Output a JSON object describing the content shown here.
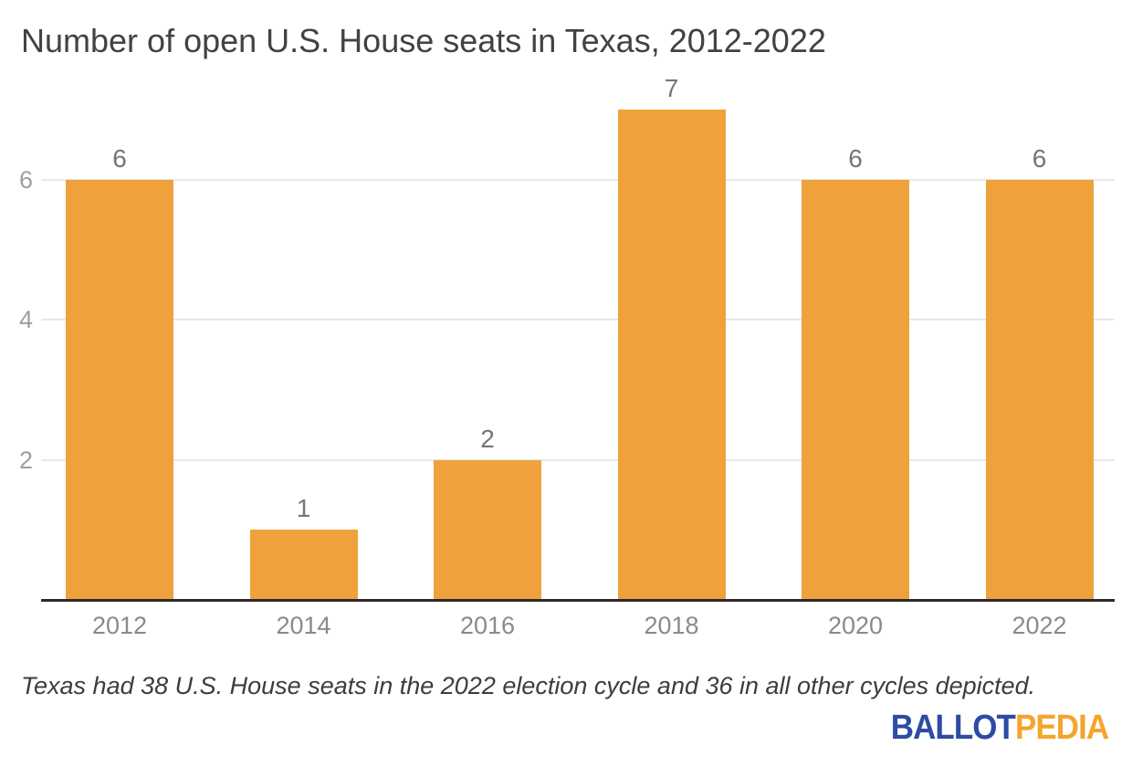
{
  "title": "Number of open U.S. House seats in Texas, 2012-2022",
  "footnote": "Texas had 38 U.S. House seats in the 2022 election cycle and 36 in all other cycles depicted.",
  "logo": {
    "part1": "BALLOT",
    "part2": "PEDIA",
    "part1_color": "#2d4ba5",
    "part2_color": "#f5a42c"
  },
  "colors": {
    "bar": "#efa13c",
    "gridline": "#e8e8e8",
    "axis_line": "#2b2b2b",
    "title_text": "#424242",
    "value_label": "#757575",
    "y_tick_label": "#9e9e9e",
    "x_tick_label": "#8a8a8a",
    "footnote_text": "#3d3d3d"
  },
  "chart_data": {
    "type": "bar",
    "title": "Number of open U.S. House seats in Texas, 2012-2022",
    "categories": [
      "2012",
      "2014",
      "2016",
      "2018",
      "2020",
      "2022"
    ],
    "values": [
      6,
      1,
      2,
      7,
      6,
      6
    ],
    "value_labels": [
      "6",
      "1",
      "2",
      "7",
      "6",
      "6"
    ],
    "xlabel": "",
    "ylabel": "",
    "ylim": [
      0,
      7.4
    ],
    "yticks": [
      2,
      4,
      6
    ],
    "grid": true,
    "legend": "none",
    "bar_color": "#efa13c"
  }
}
